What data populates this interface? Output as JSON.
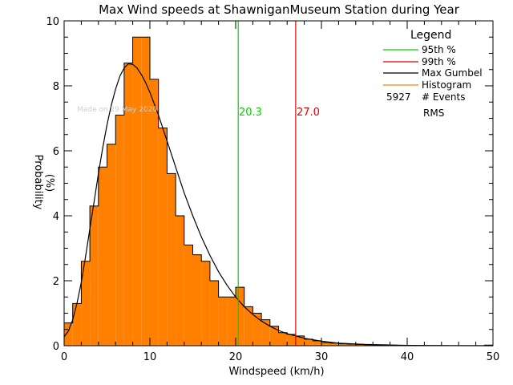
{
  "chart_data": {
    "type": "bar",
    "title": "Max Wind speeds at ShawniganMuseum Station during Year",
    "xlabel": "Windspeed (km/h)",
    "ylabel_line1": "Probability",
    "ylabel_line2": "(%)",
    "xlim": [
      0,
      50
    ],
    "ylim": [
      0,
      10
    ],
    "xticks": [
      "0",
      "10",
      "20",
      "30",
      "40",
      "50"
    ],
    "yticks": [
      "0",
      "2",
      "4",
      "6",
      "8",
      "10"
    ],
    "bin_width": 1,
    "bin_starts": [
      0,
      1,
      2,
      3,
      4,
      5,
      6,
      7,
      8,
      9,
      10,
      11,
      12,
      13,
      14,
      15,
      16,
      17,
      18,
      19,
      20,
      21,
      22,
      23,
      24,
      25,
      26,
      27,
      28,
      29,
      30,
      31,
      32,
      33,
      34,
      35,
      36,
      37,
      38,
      39,
      40,
      41,
      42,
      43,
      44,
      45,
      46,
      47,
      48,
      49
    ],
    "histogram": [
      0.7,
      1.3,
      2.6,
      4.3,
      5.5,
      6.2,
      7.1,
      8.7,
      9.5,
      9.5,
      8.2,
      6.7,
      5.3,
      4.0,
      3.1,
      2.8,
      2.6,
      2.0,
      1.5,
      1.5,
      1.8,
      1.2,
      1.0,
      0.8,
      0.6,
      0.4,
      0.35,
      0.3,
      0.2,
      0.15,
      0.1,
      0.08,
      0.06,
      0.05,
      0.04,
      0.03,
      0.02,
      0.02,
      0.01,
      0.01,
      0.01,
      0,
      0,
      0,
      0,
      0,
      0,
      0,
      0,
      0.02
    ],
    "gumbel_curve": {
      "x": [
        0,
        0.5,
        1,
        1.5,
        2,
        2.5,
        3,
        3.5,
        4,
        4.5,
        5,
        5.5,
        6,
        6.5,
        7,
        7.5,
        8,
        8.5,
        9,
        9.5,
        10,
        11,
        12,
        13,
        14,
        15,
        16,
        17,
        18,
        19,
        20,
        21,
        22,
        23,
        24,
        25,
        26,
        28,
        30,
        32,
        35,
        40,
        45,
        50
      ],
      "y": [
        0.28,
        0.45,
        0.8,
        1.3,
        1.95,
        2.75,
        3.6,
        4.45,
        5.3,
        6.1,
        6.8,
        7.4,
        7.9,
        8.3,
        8.55,
        8.68,
        8.66,
        8.55,
        8.35,
        8.1,
        7.8,
        7.1,
        6.3,
        5.5,
        4.7,
        4.0,
        3.35,
        2.78,
        2.28,
        1.86,
        1.5,
        1.2,
        0.96,
        0.76,
        0.6,
        0.47,
        0.37,
        0.23,
        0.14,
        0.08,
        0.04,
        0.01,
        0.003,
        0.001
      ]
    },
    "percentile_95": "20.3",
    "percentile_99": "27.0",
    "percentile_95_x": 20.3,
    "percentile_99_x": 27.0,
    "legend": {
      "title": "Legend",
      "position": "top-right",
      "items": [
        {
          "label": "95th %",
          "color": "#00d200"
        },
        {
          "label": "99th %",
          "color": "#dc0000"
        },
        {
          "label": "Max Gumbel",
          "color": "#000000"
        },
        {
          "label": "Histogram",
          "color": "#ff8000"
        }
      ],
      "events_count": "5927",
      "events_label": "# Events",
      "rms_label": "RMS"
    },
    "watermark": "Made on 29 May 2020",
    "colors": {
      "histogram_fill": "#ff8000",
      "histogram_edge": "#000000",
      "p95": "#00d200",
      "p99": "#dc0000",
      "curve": "#000000"
    }
  }
}
